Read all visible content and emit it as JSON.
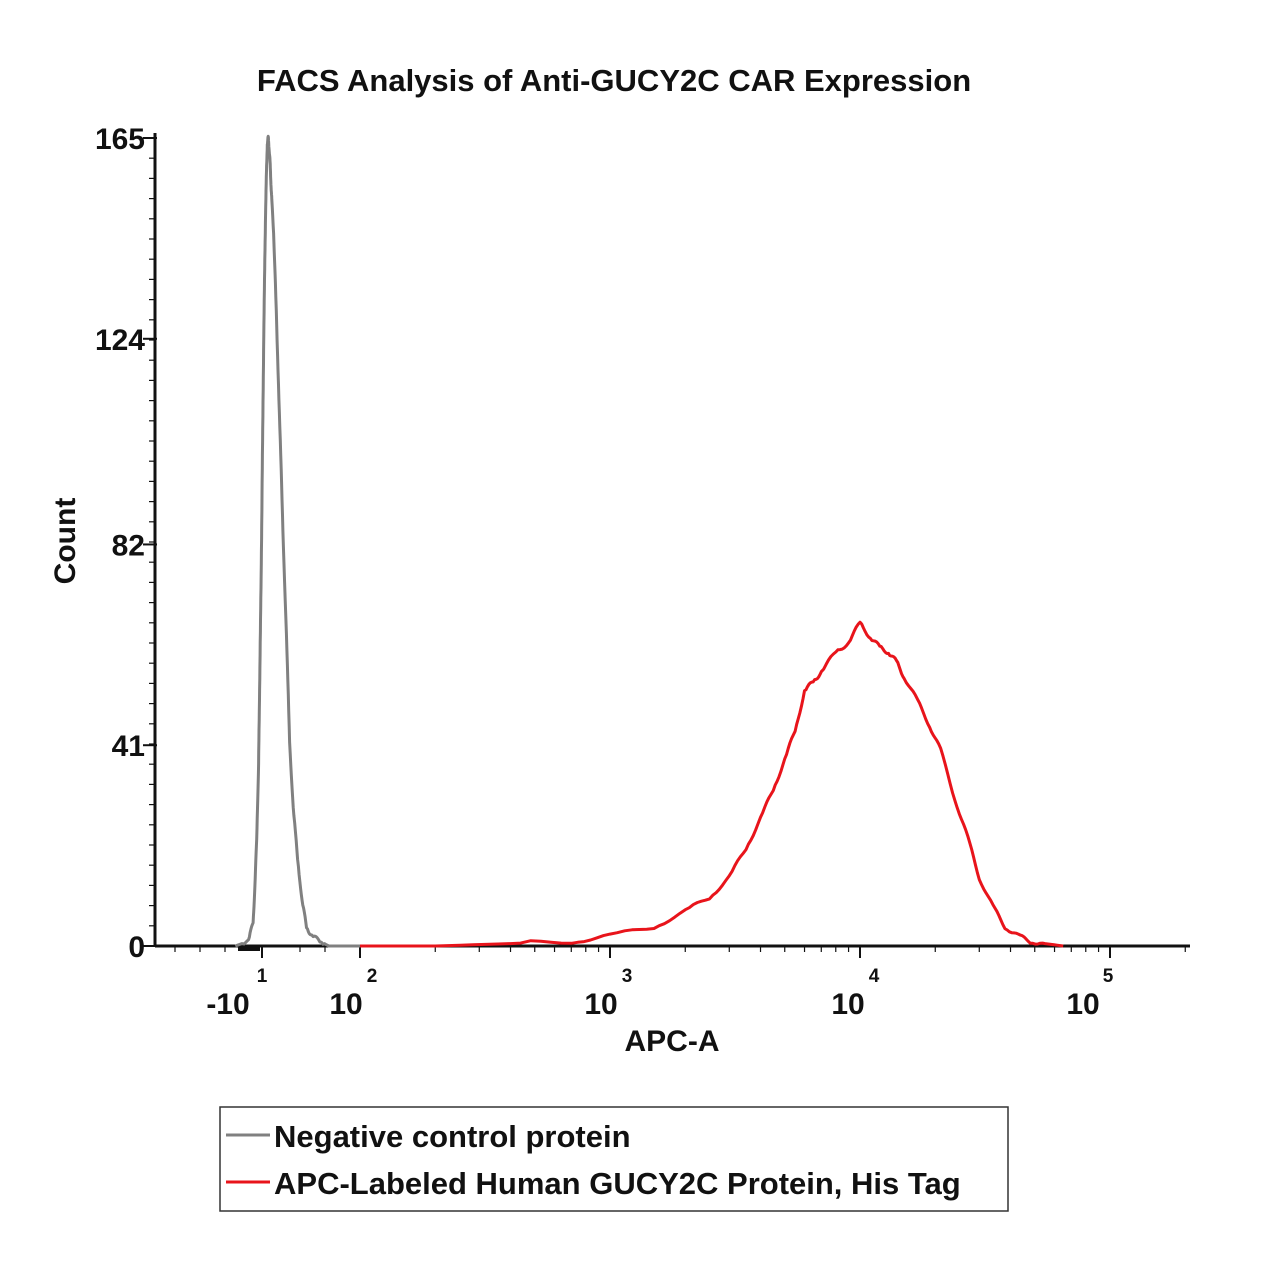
{
  "chart_data": {
    "type": "line",
    "title": "FACS Analysis of Anti-GUCY2C CAR Expression",
    "xlabel": "APC-A",
    "ylabel": "Count",
    "ylim": [
      0,
      165
    ],
    "x_scale": "biexponential",
    "y_ticks": [
      {
        "value": 0,
        "label": "0"
      },
      {
        "value": 41,
        "label": "41"
      },
      {
        "value": 82,
        "label": "82"
      },
      {
        "value": 124,
        "label": "124"
      },
      {
        "value": 165,
        "label": "165"
      }
    ],
    "x_ticks": [
      {
        "value": -10,
        "base": "-10",
        "exp": "1"
      },
      {
        "value": 100,
        "base": "10",
        "exp": "2"
      },
      {
        "value": 1000,
        "base": "10",
        "exp": "3"
      },
      {
        "value": 10000,
        "base": "10",
        "exp": "4"
      },
      {
        "value": 100000,
        "base": "10",
        "exp": "5"
      }
    ],
    "series": [
      {
        "name": "Negative control protein",
        "color": "#808080",
        "points": [
          [
            -40,
            0
          ],
          [
            -25,
            1
          ],
          [
            -20,
            5
          ],
          [
            -18,
            12
          ],
          [
            -16,
            22
          ],
          [
            -14,
            35
          ],
          [
            -13,
            48
          ],
          [
            -12,
            62
          ],
          [
            -11,
            75
          ],
          [
            -10,
            92
          ],
          [
            -9,
            108
          ],
          [
            -8,
            125
          ],
          [
            -7,
            138
          ],
          [
            -6,
            150
          ],
          [
            -5,
            158
          ],
          [
            -4,
            164
          ],
          [
            -3,
            165
          ],
          [
            -2,
            163
          ],
          [
            -1,
            160
          ],
          [
            0,
            156
          ],
          [
            1,
            152
          ],
          [
            3,
            146
          ],
          [
            5,
            135
          ],
          [
            8,
            118
          ],
          [
            11,
            100
          ],
          [
            14,
            82
          ],
          [
            18,
            60
          ],
          [
            21,
            42
          ],
          [
            25,
            28
          ],
          [
            30,
            18
          ],
          [
            35,
            9
          ],
          [
            40,
            4
          ],
          [
            46,
            2
          ],
          [
            55,
            1
          ],
          [
            65,
            0
          ],
          [
            80,
            0
          ],
          [
            100,
            0
          ]
        ]
      },
      {
        "name": "APC-Labeled Human GUCY2C Protein, His Tag",
        "color": "#e8141b",
        "points": [
          [
            100,
            0
          ],
          [
            200,
            0
          ],
          [
            400,
            0.5
          ],
          [
            700,
            1
          ],
          [
            1000,
            2
          ],
          [
            1500,
            4
          ],
          [
            2000,
            7
          ],
          [
            2500,
            10
          ],
          [
            3000,
            14
          ],
          [
            3500,
            20
          ],
          [
            4000,
            26
          ],
          [
            4500,
            32
          ],
          [
            5000,
            38
          ],
          [
            5500,
            44
          ],
          [
            6000,
            52
          ],
          [
            6500,
            54
          ],
          [
            7000,
            56
          ],
          [
            8000,
            60
          ],
          [
            9000,
            62
          ],
          [
            10000,
            66
          ],
          [
            11000,
            63
          ],
          [
            12000,
            61
          ],
          [
            13000,
            60
          ],
          [
            14000,
            58
          ],
          [
            15000,
            55
          ],
          [
            17000,
            50
          ],
          [
            19000,
            45
          ],
          [
            21000,
            40
          ],
          [
            24000,
            30
          ],
          [
            27000,
            22
          ],
          [
            30000,
            14
          ],
          [
            34000,
            8
          ],
          [
            38000,
            4
          ],
          [
            43000,
            2
          ],
          [
            48000,
            1
          ],
          [
            55000,
            0.5
          ],
          [
            65000,
            0
          ]
        ]
      }
    ],
    "legend": {
      "placement": "bottom",
      "entries": [
        "Negative control protein",
        "APC-Labeled Human GUCY2C Protein, His Tag"
      ]
    },
    "grid": false
  },
  "colors": {
    "axis": "#111111",
    "negative": "#808080",
    "positive": "#e8141b",
    "legend_border": "#333333"
  }
}
